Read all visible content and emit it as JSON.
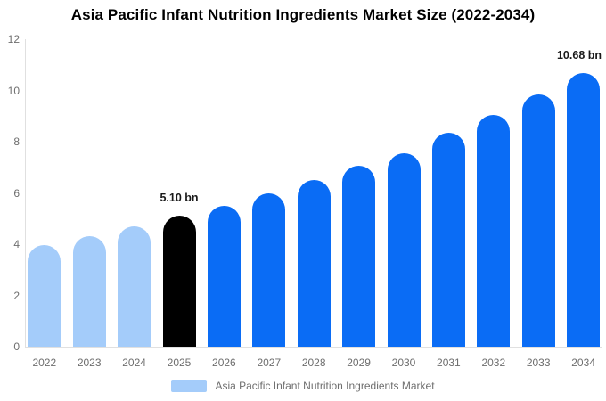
{
  "title": "Asia Pacific Infant Nutrition Ingredients Market Size (2022-2034)",
  "legend": {
    "label": "Asia Pacific Infant Nutrition Ingredients Market",
    "swatch_color": "#a4ccfa"
  },
  "colors": {
    "historical_bar": "#a4ccfa",
    "base_year_bar": "#000000",
    "forecast_bar": "#0a6cf5",
    "axis_line": "#e0e0e0",
    "tick_text": "#6e6e6e",
    "value_label_text": "#1a1a1a"
  },
  "chart_data": {
    "type": "bar",
    "title": "Asia Pacific Infant Nutrition Ingredients Market Size (2022-2034)",
    "xlabel": "",
    "ylabel": "",
    "categories": [
      "2022",
      "2023",
      "2024",
      "2025",
      "2026",
      "2027",
      "2028",
      "2029",
      "2030",
      "2031",
      "2032",
      "2033",
      "2034"
    ],
    "values": [
      3.95,
      4.3,
      4.7,
      5.1,
      5.5,
      5.98,
      6.5,
      7.05,
      7.55,
      8.35,
      9.05,
      9.84,
      10.68
    ],
    "bar_colors": [
      "#a4ccfa",
      "#a4ccfa",
      "#a4ccfa",
      "#000000",
      "#0a6cf5",
      "#0a6cf5",
      "#0a6cf5",
      "#0a6cf5",
      "#0a6cf5",
      "#0a6cf5",
      "#0a6cf5",
      "#0a6cf5",
      "#0a6cf5"
    ],
    "annotations": [
      {
        "category": "2025",
        "text": "5.10 bn"
      },
      {
        "category": "2034",
        "text": "10.68 bn"
      }
    ],
    "ylim": [
      0,
      12
    ],
    "yticks": [
      0,
      2,
      4,
      6,
      8,
      10,
      12
    ],
    "grid": false,
    "legend_position": "bottom",
    "legend_entries": [
      "Asia Pacific Infant Nutrition Ingredients Market"
    ]
  }
}
